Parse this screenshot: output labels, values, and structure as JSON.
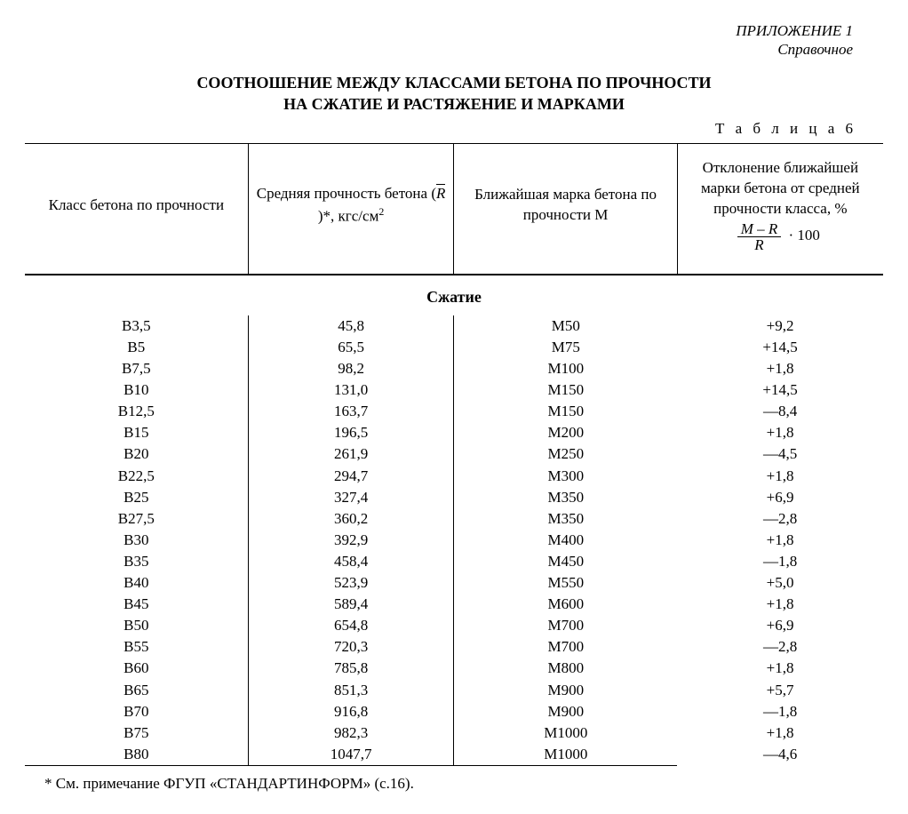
{
  "appendix": {
    "line1": "ПРИЛОЖЕНИЕ 1",
    "line2": "Справочное"
  },
  "title": {
    "line1": "СООТНОШЕНИЕ МЕЖДУ КЛАССАМИ БЕТОНА ПО ПРОЧНОСТИ",
    "line2": "НА СЖАТИЕ И РАСТЯЖЕНИЕ И МАРКАМИ"
  },
  "table_label": "Т а б л и ц а  6",
  "headers": {
    "col1": "Класс бетона по прочности",
    "col2_pre": "Средняя прочность бетона (",
    "col2_R": "R",
    "col2_post": ")*, кгс/см",
    "col2_sup": "2",
    "col3": "Ближайшая марка бетона по прочности М",
    "col4_line1": "Отклонение ближайшей марки бетона от средней прочности класса, %",
    "col4_formula_num": "M – R",
    "col4_formula_den": "R",
    "col4_formula_tail": "· 100"
  },
  "section_heading": "Сжатие",
  "columns": [
    "class",
    "strength",
    "mark",
    "deviation"
  ],
  "rows": [
    {
      "class": "В3,5",
      "strength": "45,8",
      "mark": "М50",
      "deviation": "+9,2"
    },
    {
      "class": "В5",
      "strength": "65,5",
      "mark": "М75",
      "deviation": "+14,5"
    },
    {
      "class": "В7,5",
      "strength": "98,2",
      "mark": "М100",
      "deviation": "+1,8"
    },
    {
      "class": "В10",
      "strength": "131,0",
      "mark": "М150",
      "deviation": "+14,5"
    },
    {
      "class": "В12,5",
      "strength": "163,7",
      "mark": "М150",
      "deviation": "—8,4"
    },
    {
      "class": "В15",
      "strength": "196,5",
      "mark": "М200",
      "deviation": "+1,8"
    },
    {
      "class": "В20",
      "strength": "261,9",
      "mark": "М250",
      "deviation": "—4,5"
    },
    {
      "class": "В22,5",
      "strength": "294,7",
      "mark": "М300",
      "deviation": "+1,8"
    },
    {
      "class": "В25",
      "strength": "327,4",
      "mark": "М350",
      "deviation": "+6,9"
    },
    {
      "class": "В27,5",
      "strength": "360,2",
      "mark": "М350",
      "deviation": "—2,8"
    },
    {
      "class": "В30",
      "strength": "392,9",
      "mark": "М400",
      "deviation": "+1,8"
    },
    {
      "class": "В35",
      "strength": "458,4",
      "mark": "М450",
      "deviation": "—1,8"
    },
    {
      "class": "В40",
      "strength": "523,9",
      "mark": "М550",
      "deviation": "+5,0"
    },
    {
      "class": "В45",
      "strength": "589,4",
      "mark": "М600",
      "deviation": "+1,8"
    },
    {
      "class": "В50",
      "strength": "654,8",
      "mark": "М700",
      "deviation": "+6,9"
    },
    {
      "class": "В55",
      "strength": "720,3",
      "mark": "М700",
      "deviation": "—2,8"
    },
    {
      "class": "В60",
      "strength": "785,8",
      "mark": "М800",
      "deviation": "+1,8"
    },
    {
      "class": "В65",
      "strength": "851,3",
      "mark": "М900",
      "deviation": "+5,7"
    },
    {
      "class": "В70",
      "strength": "916,8",
      "mark": "М900",
      "deviation": "—1,8"
    },
    {
      "class": "В75",
      "strength": "982,3",
      "mark": "М1000",
      "deviation": "+1,8"
    },
    {
      "class": "В80",
      "strength": "1047,7",
      "mark": "М1000",
      "deviation": "—4,6"
    }
  ],
  "footnote": "* См. примечание ФГУП «СТАНДАРТИНФОРМ» (с.16).",
  "style": {
    "font_family": "Times New Roman",
    "body_fontsize_pt": 13,
    "title_fontsize_pt": 14,
    "colors": {
      "text": "#000000",
      "background": "#ffffff",
      "rule": "#000000"
    },
    "column_widths_pct": [
      26,
      24,
      26,
      24
    ],
    "header_bottom_rule_weight": "double-ish (rendered as 2px solid)",
    "body_vertical_rules_after_cols": [
      1,
      2
    ],
    "bottom_rule_under_cols": [
      1,
      2,
      3
    ]
  }
}
